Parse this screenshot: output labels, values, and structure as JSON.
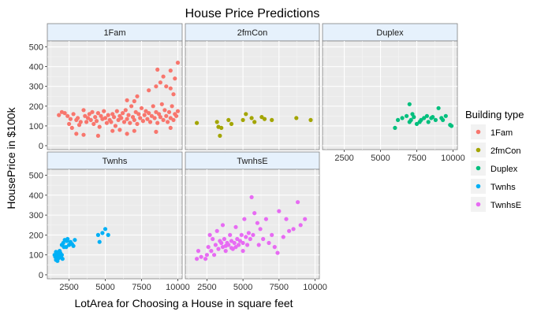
{
  "chart_data": {
    "type": "scatter",
    "title": "House Price Predictions",
    "xlabel": "LotArea for Choosing a House in square feet",
    "ylabel": "HousePrice in $100k",
    "xlim": [
      1000,
      10300
    ],
    "ylim": [
      -20,
      530
    ],
    "x_ticks": [
      2500,
      5000,
      7500,
      10000
    ],
    "y_ticks": [
      0,
      100,
      200,
      300,
      400,
      500
    ],
    "grid": true,
    "legend_title": "Building type",
    "legend_position": "right",
    "facets": [
      {
        "name": "1Fam",
        "color": "#F8766D",
        "points": [
          [
            1800,
            155
          ],
          [
            2000,
            170
          ],
          [
            2200,
            165
          ],
          [
            2400,
            150
          ],
          [
            2500,
            110
          ],
          [
            2600,
            135
          ],
          [
            2700,
            90
          ],
          [
            2800,
            160
          ],
          [
            3000,
            130
          ],
          [
            3100,
            140
          ],
          [
            3200,
            105
          ],
          [
            3300,
            120
          ],
          [
            3500,
            180
          ],
          [
            3600,
            150
          ],
          [
            3700,
            120
          ],
          [
            3800,
            140
          ],
          [
            3900,
            160
          ],
          [
            4000,
            130
          ],
          [
            4100,
            170
          ],
          [
            4200,
            110
          ],
          [
            4300,
            145
          ],
          [
            4400,
            125
          ],
          [
            4500,
            165
          ],
          [
            4600,
            95
          ],
          [
            4700,
            150
          ],
          [
            4800,
            135
          ],
          [
            4900,
            175
          ],
          [
            5000,
            140
          ],
          [
            5100,
            115
          ],
          [
            5200,
            155
          ],
          [
            5300,
            130
          ],
          [
            5400,
            120
          ],
          [
            5500,
            160
          ],
          [
            5600,
            145
          ],
          [
            5700,
            100
          ],
          [
            5800,
            175
          ],
          [
            5900,
            130
          ],
          [
            6000,
            150
          ],
          [
            6100,
            140
          ],
          [
            6200,
            165
          ],
          [
            6300,
            120
          ],
          [
            6400,
            180
          ],
          [
            6500,
            135
          ],
          [
            6600,
            155
          ],
          [
            6700,
            115
          ],
          [
            6800,
            200
          ],
          [
            6900,
            145
          ],
          [
            7000,
            130
          ],
          [
            7100,
            170
          ],
          [
            7200,
            110
          ],
          [
            7300,
            160
          ],
          [
            7400,
            140
          ],
          [
            7500,
            190
          ],
          [
            7600,
            125
          ],
          [
            7700,
            155
          ],
          [
            7800,
            175
          ],
          [
            7900,
            135
          ],
          [
            8000,
            165
          ],
          [
            8100,
            120
          ],
          [
            8200,
            150
          ],
          [
            8300,
            200
          ],
          [
            8400,
            140
          ],
          [
            8500,
            170
          ],
          [
            8600,
            115
          ],
          [
            8700,
            160
          ],
          [
            8800,
            145
          ],
          [
            8900,
            210
          ],
          [
            9000,
            130
          ],
          [
            9100,
            180
          ],
          [
            9200,
            150
          ],
          [
            9300,
            120
          ],
          [
            9400,
            170
          ],
          [
            9500,
            140
          ],
          [
            9600,
            200
          ],
          [
            9700,
            130
          ],
          [
            9800,
            160
          ],
          [
            9900,
            150
          ],
          [
            10000,
            175
          ],
          [
            7200,
            250
          ],
          [
            8000,
            280
          ],
          [
            8800,
            320
          ],
          [
            9200,
            300
          ],
          [
            9500,
            290
          ],
          [
            9800,
            340
          ],
          [
            8500,
            300
          ],
          [
            9700,
            260
          ],
          [
            6500,
            230
          ],
          [
            7000,
            225
          ],
          [
            8600,
            385
          ],
          [
            10000,
            420
          ],
          [
            9500,
            380
          ],
          [
            9000,
            350
          ],
          [
            3000,
            60
          ],
          [
            4500,
            50
          ],
          [
            5500,
            75
          ],
          [
            6000,
            80
          ],
          [
            7000,
            75
          ],
          [
            8500,
            70
          ],
          [
            9500,
            90
          ],
          [
            6500,
            60
          ],
          [
            3500,
            55
          ]
        ]
      },
      {
        "name": "2fmCon",
        "color": "#A3A500",
        "points": [
          [
            1800,
            115
          ],
          [
            3200,
            120
          ],
          [
            3300,
            95
          ],
          [
            3400,
            50
          ],
          [
            3500,
            90
          ],
          [
            4000,
            130
          ],
          [
            4200,
            110
          ],
          [
            5000,
            130
          ],
          [
            5200,
            160
          ],
          [
            5600,
            140
          ],
          [
            5800,
            120
          ],
          [
            6300,
            145
          ],
          [
            6500,
            135
          ],
          [
            7000,
            130
          ],
          [
            8700,
            140
          ],
          [
            9700,
            130
          ]
        ]
      },
      {
        "name": "Duplex",
        "color": "#00BF7D",
        "points": [
          [
            6000,
            90
          ],
          [
            6200,
            130
          ],
          [
            6500,
            140
          ],
          [
            6800,
            150
          ],
          [
            7000,
            120
          ],
          [
            7000,
            210
          ],
          [
            7100,
            130
          ],
          [
            7200,
            160
          ],
          [
            7300,
            145
          ],
          [
            7500,
            110
          ],
          [
            7700,
            120
          ],
          [
            7800,
            130
          ],
          [
            8000,
            140
          ],
          [
            8200,
            150
          ],
          [
            8300,
            120
          ],
          [
            8500,
            140
          ],
          [
            8600,
            145
          ],
          [
            8800,
            130
          ],
          [
            9000,
            190
          ],
          [
            9200,
            140
          ],
          [
            9300,
            130
          ],
          [
            9500,
            150
          ],
          [
            9800,
            105
          ],
          [
            9900,
            100
          ]
        ]
      },
      {
        "name": "Twnhs",
        "color": "#00B0F6",
        "points": [
          [
            1500,
            100
          ],
          [
            1550,
            90
          ],
          [
            1600,
            115
          ],
          [
            1650,
            80
          ],
          [
            1700,
            105
          ],
          [
            1750,
            95
          ],
          [
            1800,
            85
          ],
          [
            1850,
            120
          ],
          [
            1900,
            110
          ],
          [
            1950,
            90
          ],
          [
            2000,
            100
          ],
          [
            2050,
            80
          ],
          [
            1600,
            75
          ],
          [
            1700,
            70
          ],
          [
            2000,
            150
          ],
          [
            2100,
            160
          ],
          [
            2200,
            175
          ],
          [
            2300,
            140
          ],
          [
            2400,
            180
          ],
          [
            2500,
            150
          ],
          [
            2600,
            165
          ],
          [
            2700,
            155
          ],
          [
            2800,
            145
          ],
          [
            2900,
            175
          ],
          [
            2350,
            170
          ],
          [
            2150,
            140
          ],
          [
            4500,
            200
          ],
          [
            4600,
            165
          ],
          [
            4800,
            210
          ],
          [
            5000,
            230
          ],
          [
            5200,
            200
          ]
        ]
      },
      {
        "name": "TwnhsE",
        "color": "#E76BF3",
        "points": [
          [
            1800,
            80
          ],
          [
            1900,
            120
          ],
          [
            2100,
            90
          ],
          [
            2500,
            100
          ],
          [
            2400,
            80
          ],
          [
            2600,
            140
          ],
          [
            2700,
            200
          ],
          [
            2800,
            120
          ],
          [
            2900,
            180
          ],
          [
            3000,
            100
          ],
          [
            3100,
            150
          ],
          [
            3200,
            220
          ],
          [
            3300,
            130
          ],
          [
            3400,
            170
          ],
          [
            3500,
            160
          ],
          [
            3600,
            140
          ],
          [
            3600,
            250
          ],
          [
            3700,
            180
          ],
          [
            3800,
            120
          ],
          [
            3900,
            160
          ],
          [
            4000,
            150
          ],
          [
            4100,
            200
          ],
          [
            4200,
            170
          ],
          [
            4300,
            130
          ],
          [
            4400,
            160
          ],
          [
            4500,
            240
          ],
          [
            4600,
            180
          ],
          [
            4700,
            150
          ],
          [
            4800,
            170
          ],
          [
            4900,
            200
          ],
          [
            5000,
            160
          ],
          [
            5100,
            280
          ],
          [
            5200,
            190
          ],
          [
            5300,
            150
          ],
          [
            5400,
            210
          ],
          [
            5500,
            180
          ],
          [
            5600,
            390
          ],
          [
            5700,
            200
          ],
          [
            5800,
            310
          ],
          [
            6000,
            260
          ],
          [
            6200,
            230
          ],
          [
            6400,
            180
          ],
          [
            6600,
            280
          ],
          [
            6800,
            160
          ],
          [
            7000,
            200
          ],
          [
            7200,
            140
          ],
          [
            7400,
            110
          ],
          [
            7500,
            320
          ],
          [
            7800,
            190
          ],
          [
            8000,
            280
          ],
          [
            8200,
            220
          ],
          [
            8500,
            230
          ],
          [
            8800,
            365
          ],
          [
            9000,
            250
          ],
          [
            9300,
            280
          ],
          [
            4500,
            140
          ],
          [
            3800,
            145
          ],
          [
            4200,
            135
          ],
          [
            5000,
            120
          ],
          [
            6100,
            150
          ]
        ]
      }
    ]
  }
}
